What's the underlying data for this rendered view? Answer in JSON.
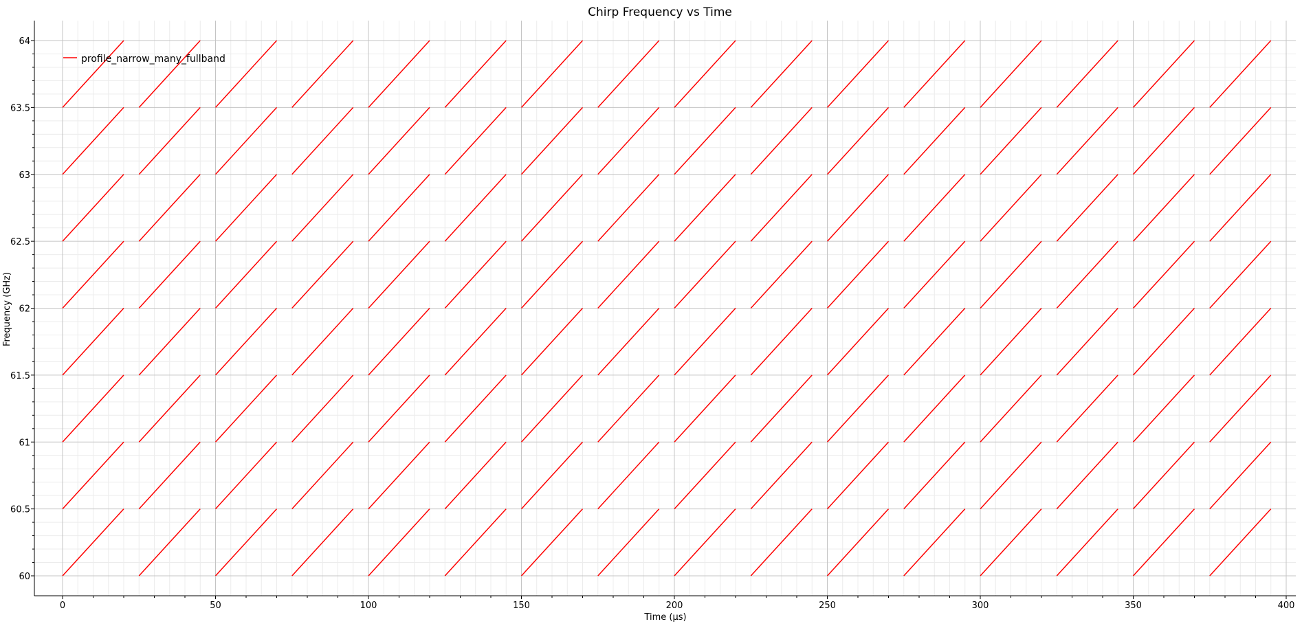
{
  "chart_data": {
    "type": "line",
    "title": "Chirp Frequency vs Time",
    "xlabel": "Time (µs)",
    "ylabel": "Frequency (GHz)",
    "xlim": [
      -9,
      401
    ],
    "ylim": [
      59.9,
      64.1
    ],
    "x_ticks": [
      0,
      50,
      100,
      150,
      200,
      250,
      300,
      350,
      400
    ],
    "x_tick_labels": [
      "0",
      "50",
      "100",
      "150",
      "200",
      "250",
      "300",
      "350",
      "400"
    ],
    "y_ticks": [
      60,
      60.5,
      61,
      61.5,
      62,
      62.5,
      63,
      63.5,
      64
    ],
    "y_tick_labels": [
      "60",
      "60.5",
      "61",
      "61.5",
      "62",
      "62.5",
      "63",
      "63.5",
      "64"
    ],
    "grid": true,
    "legend_position": "top-left",
    "series": [
      {
        "name": "profile_narrow_many_fullband",
        "color": "#ff0000",
        "chirp_period_us": 25,
        "chirp_duration_us": 20,
        "chirp_count": 16,
        "first_chirp_start_us": 0,
        "band_start_frequencies_ghz": [
          60,
          60.5,
          61,
          61.5,
          62,
          62.5,
          63,
          63.5
        ],
        "band_width_ghz": 0.5
      }
    ]
  }
}
